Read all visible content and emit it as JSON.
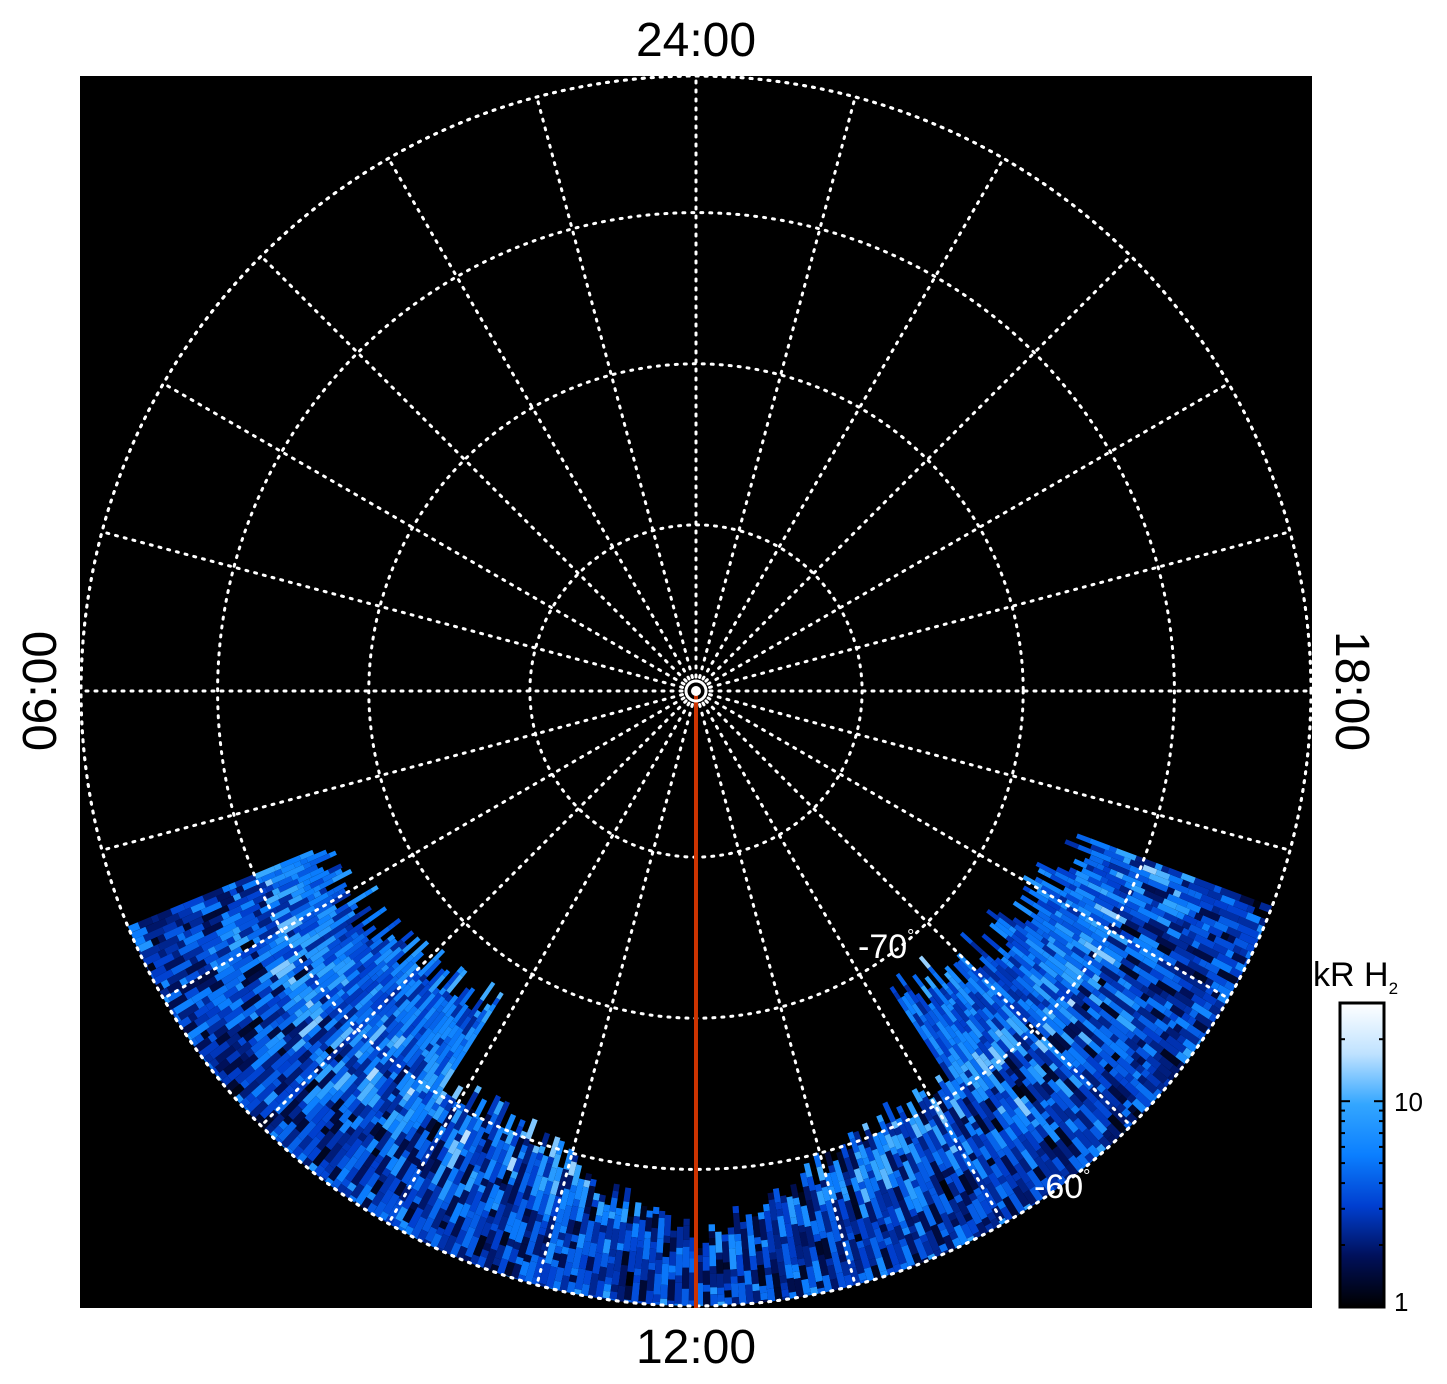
{
  "chart_data": {
    "type": "heatmap",
    "projection": "polar (southern hemisphere, planetocentric latitude)",
    "local_time_labels": {
      "top": "24:00",
      "bottom": "12:00",
      "left": "06:00",
      "right": "18:00"
    },
    "latitude_labels": [
      {
        "text": "-70",
        "unit": "°",
        "lat": -70
      },
      {
        "text": "-60",
        "unit": "°",
        "lat": -60
      }
    ],
    "grid": {
      "latitude_circles_deg": [
        -90,
        -80,
        -70,
        -60,
        -50
      ],
      "local_time_spokes_hours": [
        0,
        1,
        2,
        3,
        4,
        5,
        6,
        7,
        8,
        9,
        10,
        11,
        12,
        13,
        14,
        15,
        16,
        17,
        18,
        19,
        20,
        21,
        22,
        23
      ]
    },
    "highlighted_meridian_hours": 12,
    "data_coverage": {
      "local_time_hours": [
        7.5,
        16.6
      ],
      "min_abs_latitude_deg": 62
    },
    "colorbar": {
      "label": "kR H",
      "label_subscript": "2",
      "scale": "log",
      "range": [
        1,
        30
      ],
      "tick_labels": [
        "1",
        "10"
      ],
      "tick_values": [
        1,
        10
      ],
      "colors": [
        "#000000",
        "#00105a",
        "#003fd0",
        "#0b7fff",
        "#33a6ff",
        "#bfe2ff",
        "#ffffff"
      ]
    },
    "colors": {
      "background": "#000000",
      "grid": "#ffffff",
      "meridian": "#cc3300"
    }
  }
}
